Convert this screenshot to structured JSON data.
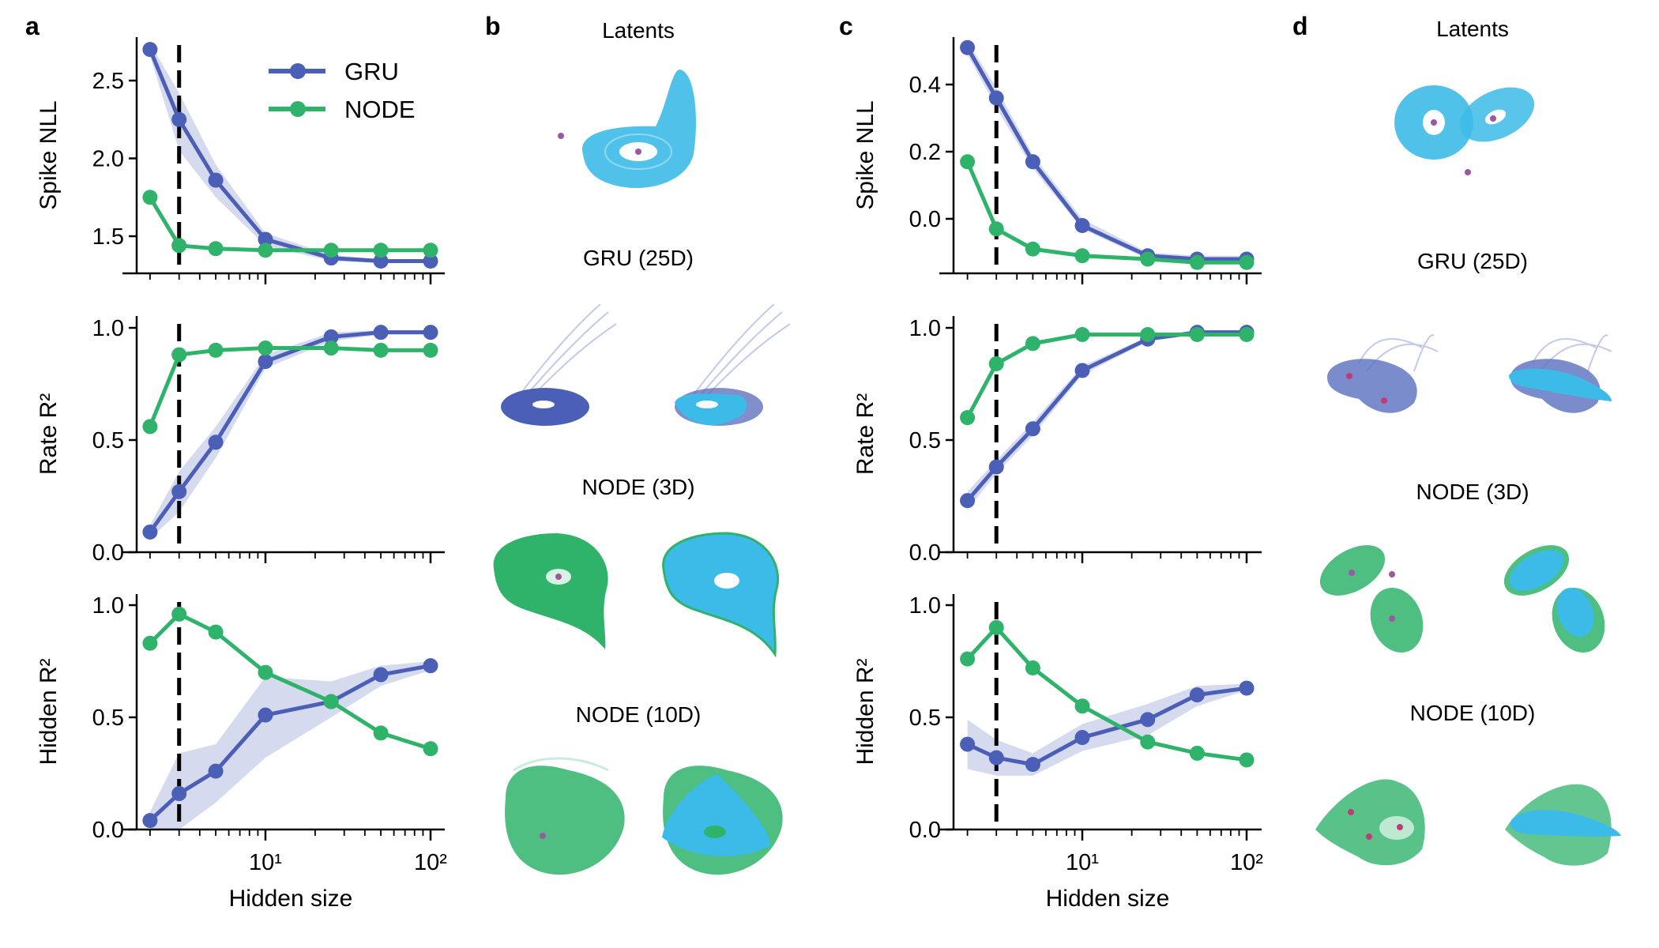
{
  "panels": {
    "a": "a",
    "b": "b",
    "c": "c",
    "d": "d"
  },
  "legend": [
    {
      "name": "GRU",
      "color": "#4a5fb5"
    },
    {
      "name": "NODE",
      "color": "#2fb36b"
    }
  ],
  "colors": {
    "gru": "#4a5fb5",
    "node": "#2fb36b",
    "gru_band": "#c5cbe8",
    "latent_cyan": "#3dbbe8",
    "fixed_point": "#9b59a0"
  },
  "latent_panels": {
    "b": {
      "titles": [
        "Latents",
        "GRU (25D)",
        "NODE (3D)",
        "NODE (10D)"
      ]
    },
    "d": {
      "titles": [
        "Latents",
        "GRU (25D)",
        "NODE (3D)",
        "NODE (10D)"
      ]
    }
  },
  "chart_data": [
    {
      "panel": "a",
      "row": 0,
      "type": "line",
      "ylabel": "Spike NLL",
      "xlabel": "",
      "xscale": "log",
      "x": [
        2,
        3,
        5,
        10,
        25,
        50,
        100
      ],
      "ylim": [
        1.33,
        2.75
      ],
      "yticks": [
        "2.5",
        "2.0",
        "1.5"
      ],
      "ytick_values": [
        2.5,
        2.0,
        1.5
      ],
      "xticks": [
        "10¹",
        "10²"
      ],
      "show_xtick_labels": false,
      "vline": 3,
      "series": [
        {
          "name": "GRU",
          "values": [
            2.7,
            2.25,
            1.86,
            1.48,
            1.36,
            1.34,
            1.34
          ],
          "band": [
            [
              2.66,
              2.74
            ],
            [
              2.05,
              2.42
            ],
            [
              1.75,
              1.96
            ],
            [
              1.44,
              1.52
            ],
            [
              1.34,
              1.38
            ],
            [
              1.33,
              1.35
            ],
            [
              1.33,
              1.35
            ]
          ]
        },
        {
          "name": "NODE",
          "values": [
            1.75,
            1.44,
            1.42,
            1.41,
            1.41,
            1.41,
            1.41
          ]
        }
      ],
      "legend": "top-right"
    },
    {
      "panel": "a",
      "row": 1,
      "type": "line",
      "ylabel": "Rate R²",
      "xlabel": "",
      "xscale": "log",
      "x": [
        2,
        3,
        5,
        10,
        25,
        50,
        100
      ],
      "ylim": [
        0,
        1.05
      ],
      "yticks": [
        "1.0",
        "0.5",
        "0.0"
      ],
      "ytick_values": [
        1.0,
        0.5,
        0.0
      ],
      "show_xtick_labels": false,
      "vline": 3,
      "series": [
        {
          "name": "GRU",
          "values": [
            0.09,
            0.27,
            0.49,
            0.85,
            0.96,
            0.98,
            0.98
          ],
          "band": [
            [
              0.06,
              0.12
            ],
            [
              0.18,
              0.36
            ],
            [
              0.42,
              0.56
            ],
            [
              0.82,
              0.88
            ],
            [
              0.94,
              0.98
            ],
            [
              0.97,
              0.99
            ],
            [
              0.97,
              0.99
            ]
          ]
        },
        {
          "name": "NODE",
          "values": [
            0.56,
            0.88,
            0.9,
            0.91,
            0.91,
            0.9,
            0.9
          ]
        }
      ]
    },
    {
      "panel": "a",
      "row": 2,
      "type": "line",
      "ylabel": "Hidden R²",
      "xlabel": "Hidden size",
      "xscale": "log",
      "x": [
        2,
        3,
        5,
        10,
        25,
        50,
        100
      ],
      "ylim": [
        0,
        1.05
      ],
      "yticks": [
        "1.0",
        "0.5",
        "0.0"
      ],
      "ytick_values": [
        1.0,
        0.5,
        0.0
      ],
      "xticks": [
        "10¹",
        "10²"
      ],
      "xtick_values": [
        10,
        100
      ],
      "show_xtick_labels": true,
      "vline": 3,
      "series": [
        {
          "name": "GRU",
          "values": [
            0.04,
            0.16,
            0.26,
            0.51,
            0.57,
            0.69,
            0.73
          ],
          "band": [
            [
              0.0,
              0.08
            ],
            [
              0.0,
              0.34
            ],
            [
              0.12,
              0.38
            ],
            [
              0.32,
              0.68
            ],
            [
              0.5,
              0.66
            ],
            [
              0.64,
              0.73
            ],
            [
              0.71,
              0.75
            ]
          ]
        },
        {
          "name": "NODE",
          "values": [
            0.83,
            0.96,
            0.88,
            0.7,
            0.57,
            0.43,
            0.36
          ]
        }
      ]
    },
    {
      "panel": "c",
      "row": 0,
      "type": "line",
      "ylabel": "Spike NLL",
      "xlabel": "",
      "xscale": "log",
      "x": [
        2,
        3,
        5,
        10,
        25,
        50,
        100
      ],
      "ylim": [
        -0.155,
        0.53
      ],
      "yticks": [
        "0.4",
        "0.2",
        "0.0"
      ],
      "ytick_values": [
        0.4,
        0.2,
        0.0
      ],
      "show_xtick_labels": false,
      "vline": 3,
      "series": [
        {
          "name": "GRU",
          "values": [
            0.51,
            0.36,
            0.17,
            -0.02,
            -0.11,
            -0.12,
            -0.12
          ],
          "band": [
            [
              0.49,
              0.53
            ],
            [
              0.33,
              0.39
            ],
            [
              0.15,
              0.19
            ],
            [
              -0.03,
              0.0
            ],
            [
              -0.12,
              -0.1
            ],
            [
              -0.13,
              -0.11
            ],
            [
              -0.13,
              -0.11
            ]
          ]
        },
        {
          "name": "NODE",
          "values": [
            0.17,
            -0.03,
            -0.09,
            -0.11,
            -0.12,
            -0.13,
            -0.13
          ]
        }
      ]
    },
    {
      "panel": "c",
      "row": 1,
      "type": "line",
      "ylabel": "Rate R²",
      "xlabel": "",
      "xscale": "log",
      "x": [
        2,
        3,
        5,
        10,
        25,
        50,
        100
      ],
      "ylim": [
        0,
        1.05
      ],
      "yticks": [
        "1.0",
        "0.5",
        "0.0"
      ],
      "ytick_values": [
        1.0,
        0.5,
        0.0
      ],
      "show_xtick_labels": false,
      "vline": 3,
      "series": [
        {
          "name": "GRU",
          "values": [
            0.23,
            0.38,
            0.55,
            0.81,
            0.95,
            0.98,
            0.98
          ],
          "band": [
            [
              0.19,
              0.27
            ],
            [
              0.35,
              0.41
            ],
            [
              0.52,
              0.58
            ],
            [
              0.79,
              0.83
            ],
            [
              0.94,
              0.96
            ],
            [
              0.97,
              0.99
            ],
            [
              0.97,
              0.99
            ]
          ]
        },
        {
          "name": "NODE",
          "values": [
            0.6,
            0.84,
            0.93,
            0.97,
            0.97,
            0.97,
            0.97
          ]
        }
      ]
    },
    {
      "panel": "c",
      "row": 2,
      "type": "line",
      "ylabel": "Hidden R²",
      "xlabel": "Hidden size",
      "xscale": "log",
      "x": [
        2,
        3,
        5,
        10,
        25,
        50,
        100
      ],
      "ylim": [
        0,
        1.05
      ],
      "yticks": [
        "1.0",
        "0.5",
        "0.0"
      ],
      "ytick_values": [
        1.0,
        0.5,
        0.0
      ],
      "xticks": [
        "10¹",
        "10²"
      ],
      "xtick_values": [
        10,
        100
      ],
      "show_xtick_labels": true,
      "vline": 3,
      "series": [
        {
          "name": "GRU",
          "values": [
            0.38,
            0.32,
            0.29,
            0.41,
            0.49,
            0.6,
            0.63
          ],
          "band": [
            [
              0.27,
              0.49
            ],
            [
              0.24,
              0.4
            ],
            [
              0.24,
              0.34
            ],
            [
              0.35,
              0.47
            ],
            [
              0.42,
              0.56
            ],
            [
              0.55,
              0.64
            ],
            [
              0.62,
              0.65
            ]
          ]
        },
        {
          "name": "NODE",
          "values": [
            0.76,
            0.9,
            0.72,
            0.55,
            0.39,
            0.34,
            0.31
          ]
        }
      ]
    }
  ]
}
